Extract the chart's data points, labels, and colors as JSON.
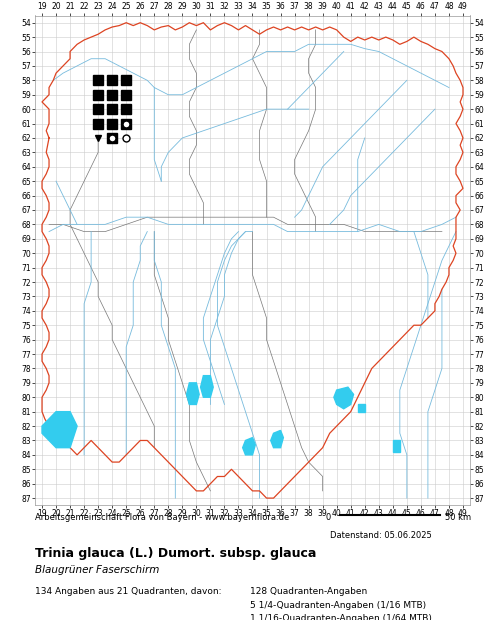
{
  "title_line1": "Trinia glauca (L.) Dumort. subsp. glauca",
  "title_line2": "Blaugrüner Faserschirm",
  "footer_left": "Arbeitsgemeinschaft Flora von Bayern - www.bayernflora.de",
  "footer_scale_label": "0",
  "footer_scale_text": "50 km",
  "footer_date": "Datenstand: 05.06.2025",
  "stats_line1": "134 Angaben aus 21 Quadranten, davon:",
  "stats_line2": "128 Quadranten-Angaben",
  "stats_line3": "5 1/4-Quadranten-Angaben (1/16 MTB)",
  "stats_line4": "1 1/16-Quadranten-Angaben (1/64 MTB)",
  "x_min": 19,
  "x_max": 49,
  "y_min": 54,
  "y_max": 87,
  "grid_color": "#cccccc",
  "background_color": "#ffffff",
  "border_color_outer": "#dd4422",
  "border_color_inner": "#777777",
  "river_color": "#77bbdd",
  "lake_color": "#33ccee",
  "point_color": "#000000",
  "filled_squares": [
    [
      23,
      58
    ],
    [
      24,
      58
    ],
    [
      25,
      58
    ],
    [
      23,
      59
    ],
    [
      24,
      59
    ],
    [
      25,
      59
    ],
    [
      23,
      60
    ],
    [
      24,
      60
    ],
    [
      25,
      60
    ],
    [
      23,
      61
    ],
    [
      24,
      61
    ],
    [
      25,
      61
    ],
    [
      24,
      62
    ]
  ],
  "open_circles": [
    [
      25,
      61
    ],
    [
      24,
      62
    ],
    [
      25,
      62
    ]
  ],
  "small_triangle": [
    23,
    62
  ],
  "tick_fontsize": 5.5,
  "label_fontsize": 7.0
}
